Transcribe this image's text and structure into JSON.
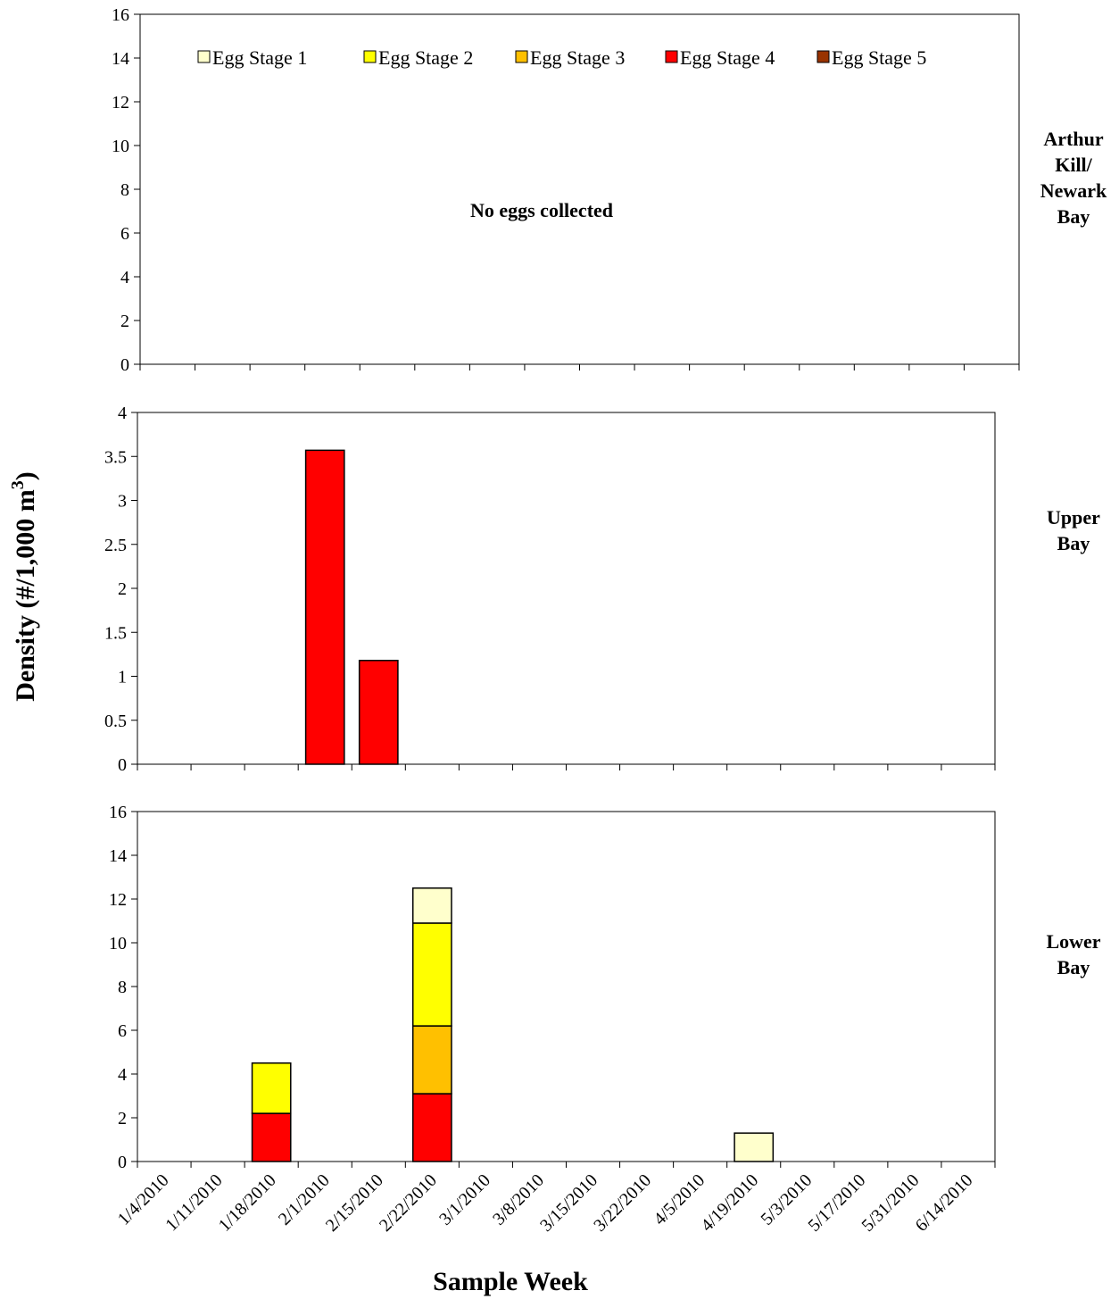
{
  "chart_data": {
    "type": "bar",
    "stacked": true,
    "xlabel": "Sample Week",
    "ylabel": "Density (#/1,000 m³)",
    "ylabel_parts": [
      "Density (#/1,000 m",
      "3",
      ")"
    ],
    "categories": [
      "1/4/2010",
      "1/11/2010",
      "1/18/2010",
      "2/1/2010",
      "2/15/2010",
      "2/22/2010",
      "3/1/2010",
      "3/8/2010",
      "3/15/2010",
      "3/22/2010",
      "4/5/2010",
      "4/19/2010",
      "5/3/2010",
      "5/17/2010",
      "5/31/2010",
      "6/14/2010"
    ],
    "legend": {
      "placement": "top",
      "entries": [
        {
          "name": "Egg Stage 1",
          "color": "#FFFFCC"
        },
        {
          "name": "Egg Stage 2",
          "color": "#FFFF00"
        },
        {
          "name": "Egg Stage 3",
          "color": "#FFC000"
        },
        {
          "name": "Egg Stage 4",
          "color": "#FF0000"
        },
        {
          "name": "Egg Stage 5",
          "color": "#993300"
        }
      ]
    },
    "stack_order": [
      "Egg Stage 4",
      "Egg Stage 3",
      "Egg Stage 2",
      "Egg Stage 1",
      "Egg Stage 5"
    ],
    "panels": [
      {
        "region": "Arthur Kill/ Newark Bay",
        "region_lines": [
          "Arthur",
          "Kill/",
          "Newark",
          "Bay"
        ],
        "ylim": [
          0,
          16
        ],
        "yticks": [
          0,
          2,
          4,
          6,
          8,
          10,
          12,
          14,
          16
        ],
        "annotation": "No eggs collected",
        "series": [
          {
            "name": "Egg Stage 1",
            "values": [
              0,
              0,
              0,
              0,
              0,
              0,
              0,
              0,
              0,
              0,
              0,
              0,
              0,
              0,
              0,
              0
            ]
          },
          {
            "name": "Egg Stage 2",
            "values": [
              0,
              0,
              0,
              0,
              0,
              0,
              0,
              0,
              0,
              0,
              0,
              0,
              0,
              0,
              0,
              0
            ]
          },
          {
            "name": "Egg Stage 3",
            "values": [
              0,
              0,
              0,
              0,
              0,
              0,
              0,
              0,
              0,
              0,
              0,
              0,
              0,
              0,
              0,
              0
            ]
          },
          {
            "name": "Egg Stage 4",
            "values": [
              0,
              0,
              0,
              0,
              0,
              0,
              0,
              0,
              0,
              0,
              0,
              0,
              0,
              0,
              0,
              0
            ]
          },
          {
            "name": "Egg Stage 5",
            "values": [
              0,
              0,
              0,
              0,
              0,
              0,
              0,
              0,
              0,
              0,
              0,
              0,
              0,
              0,
              0,
              0
            ]
          }
        ]
      },
      {
        "region": "Upper Bay",
        "region_lines": [
          "Upper",
          "Bay"
        ],
        "ylim": [
          0,
          4
        ],
        "yticks": [
          0,
          0.5,
          1,
          1.5,
          2,
          2.5,
          3,
          3.5,
          4
        ],
        "annotation": "",
        "series": [
          {
            "name": "Egg Stage 1",
            "values": [
              0,
              0,
              0,
              0,
              0,
              0,
              0,
              0,
              0,
              0,
              0,
              0,
              0,
              0,
              0,
              0
            ]
          },
          {
            "name": "Egg Stage 2",
            "values": [
              0,
              0,
              0,
              0,
              0,
              0,
              0,
              0,
              0,
              0,
              0,
              0,
              0,
              0,
              0,
              0
            ]
          },
          {
            "name": "Egg Stage 3",
            "values": [
              0,
              0,
              0,
              0,
              0,
              0,
              0,
              0,
              0,
              0,
              0,
              0,
              0,
              0,
              0,
              0
            ]
          },
          {
            "name": "Egg Stage 4",
            "values": [
              0,
              0,
              0,
              3.57,
              1.18,
              0,
              0,
              0,
              0,
              0,
              0,
              0,
              0,
              0,
              0,
              0
            ]
          },
          {
            "name": "Egg Stage 5",
            "values": [
              0,
              0,
              0,
              0,
              0,
              0,
              0,
              0,
              0,
              0,
              0,
              0,
              0,
              0,
              0,
              0
            ]
          }
        ]
      },
      {
        "region": "Lower Bay",
        "region_lines": [
          "Lower",
          "Bay"
        ],
        "ylim": [
          0,
          16
        ],
        "yticks": [
          0,
          2,
          4,
          6,
          8,
          10,
          12,
          14,
          16
        ],
        "annotation": "",
        "series": [
          {
            "name": "Egg Stage 1",
            "values": [
              0,
              0,
              0,
              0,
              0,
              1.6,
              0,
              0,
              0,
              0,
              0,
              1.3,
              0,
              0,
              0,
              0
            ]
          },
          {
            "name": "Egg Stage 2",
            "values": [
              0,
              0,
              2.3,
              0,
              0,
              4.7,
              0,
              0,
              0,
              0,
              0,
              0,
              0,
              0,
              0,
              0
            ]
          },
          {
            "name": "Egg Stage 3",
            "values": [
              0,
              0,
              0,
              0,
              0,
              3.1,
              0,
              0,
              0,
              0,
              0,
              0,
              0,
              0,
              0,
              0
            ]
          },
          {
            "name": "Egg Stage 4",
            "values": [
              0,
              0,
              2.2,
              0,
              0,
              3.1,
              0,
              0,
              0,
              0,
              0,
              0,
              0,
              0,
              0,
              0
            ]
          },
          {
            "name": "Egg Stage 5",
            "values": [
              0,
              0,
              0,
              0,
              0,
              0,
              0,
              0,
              0,
              0,
              0,
              0,
              0,
              0,
              0,
              0
            ]
          }
        ]
      }
    ]
  }
}
